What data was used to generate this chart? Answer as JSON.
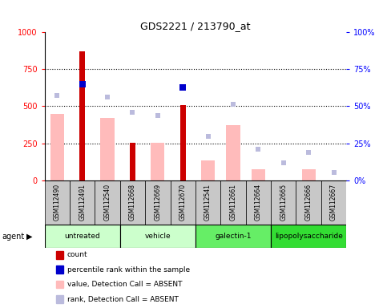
{
  "title": "GDS2221 / 213790_at",
  "samples": [
    "GSM112490",
    "GSM112491",
    "GSM112540",
    "GSM112668",
    "GSM112669",
    "GSM112670",
    "GSM112541",
    "GSM112661",
    "GSM112664",
    "GSM112665",
    "GSM112666",
    "GSM112667"
  ],
  "count_values": [
    null,
    870,
    null,
    255,
    null,
    510,
    null,
    null,
    null,
    null,
    null,
    null
  ],
  "percentile_rank": [
    null,
    650,
    null,
    null,
    null,
    625,
    null,
    null,
    null,
    null,
    null,
    null
  ],
  "value_absent": [
    450,
    null,
    420,
    null,
    255,
    null,
    135,
    370,
    75,
    null,
    75,
    null
  ],
  "rank_absent": [
    575,
    null,
    560,
    460,
    435,
    null,
    295,
    515,
    210,
    120,
    190,
    55
  ],
  "agent_groups": [
    {
      "label": "untreated",
      "start": 0,
      "end": 2,
      "color": "#ccffcc"
    },
    {
      "label": "vehicle",
      "start": 3,
      "end": 5,
      "color": "#ccffcc"
    },
    {
      "label": "galectin-1",
      "start": 6,
      "end": 8,
      "color": "#66ee66"
    },
    {
      "label": "lipopolysaccharide",
      "start": 9,
      "end": 11,
      "color": "#33dd33"
    }
  ],
  "ylim_left": [
    0,
    1000
  ],
  "ylim_right": [
    0,
    100
  ],
  "yticks_left": [
    0,
    250,
    500,
    750,
    1000
  ],
  "ytick_labels_left": [
    "0",
    "250",
    "500",
    "750",
    "1000"
  ],
  "yticks_right": [
    0,
    25,
    50,
    75,
    100
  ],
  "ytick_labels_right": [
    "0%",
    "25%",
    "50%",
    "75%",
    "100%"
  ],
  "count_color": "#cc0000",
  "percentile_color": "#0000cc",
  "value_absent_color": "#ffbbbb",
  "rank_absent_color": "#bbbbdd",
  "dotted_lines": [
    250,
    500,
    750
  ],
  "col_gray": "#c8c8c8",
  "plot_bg": "#ffffff"
}
